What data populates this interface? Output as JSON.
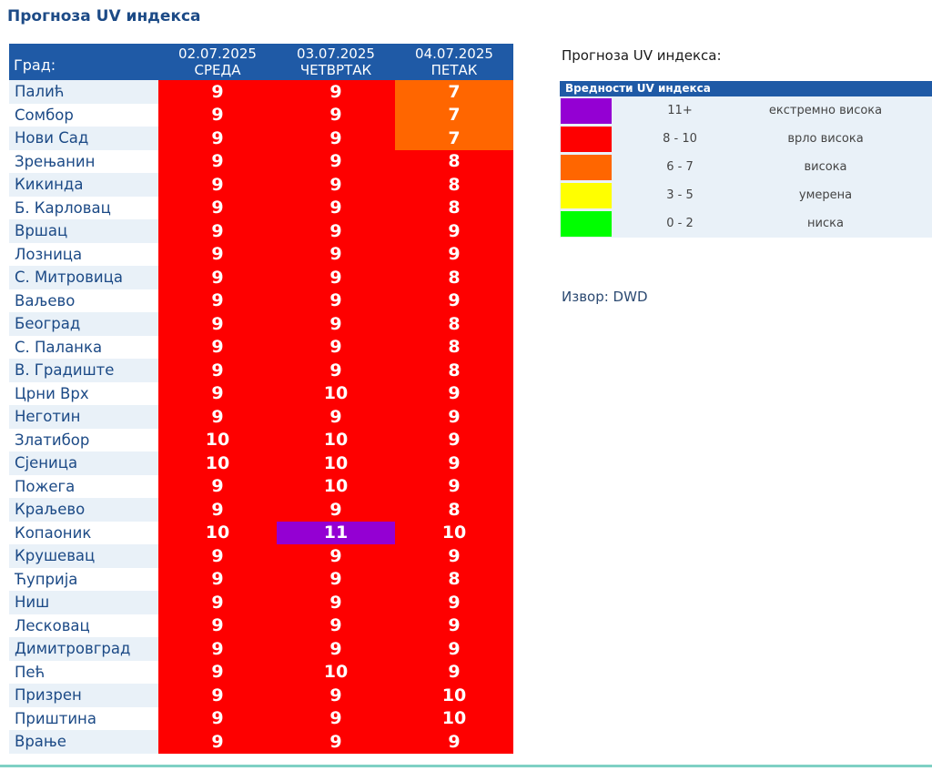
{
  "page": {
    "title": "Прогноза UV индекса"
  },
  "table": {
    "city_header": "Град:",
    "days": [
      {
        "date": "02.07.2025",
        "weekday": "СРЕДА"
      },
      {
        "date": "03.07.2025",
        "weekday": "ЧЕТВРТАК"
      },
      {
        "date": "04.07.2025",
        "weekday": "ПЕТАК"
      }
    ],
    "rows": [
      {
        "city": "Палић",
        "values": [
          9,
          9,
          7
        ]
      },
      {
        "city": "Сомбор",
        "values": [
          9,
          9,
          7
        ]
      },
      {
        "city": "Нови Сад",
        "values": [
          9,
          9,
          7
        ]
      },
      {
        "city": "Зрењанин",
        "values": [
          9,
          9,
          8
        ]
      },
      {
        "city": "Кикинда",
        "values": [
          9,
          9,
          8
        ]
      },
      {
        "city": "Б. Карловац",
        "values": [
          9,
          9,
          8
        ]
      },
      {
        "city": "Вршац",
        "values": [
          9,
          9,
          9
        ]
      },
      {
        "city": "Лозница",
        "values": [
          9,
          9,
          9
        ]
      },
      {
        "city": "С. Митровица",
        "values": [
          9,
          9,
          8
        ]
      },
      {
        "city": "Ваљево",
        "values": [
          9,
          9,
          9
        ]
      },
      {
        "city": "Београд",
        "values": [
          9,
          9,
          8
        ]
      },
      {
        "city": "С. Паланка",
        "values": [
          9,
          9,
          8
        ]
      },
      {
        "city": "В. Градиште",
        "values": [
          9,
          9,
          8
        ]
      },
      {
        "city": "Црни Врх",
        "values": [
          9,
          10,
          9
        ]
      },
      {
        "city": "Неготин",
        "values": [
          9,
          9,
          9
        ]
      },
      {
        "city": "Златибор",
        "values": [
          10,
          10,
          9
        ]
      },
      {
        "city": "Сјеница",
        "values": [
          10,
          10,
          9
        ]
      },
      {
        "city": "Пожега",
        "values": [
          9,
          10,
          9
        ]
      },
      {
        "city": "Краљево",
        "values": [
          9,
          9,
          8
        ]
      },
      {
        "city": "Копаоник",
        "values": [
          10,
          11,
          10
        ]
      },
      {
        "city": "Крушевац",
        "values": [
          9,
          9,
          9
        ]
      },
      {
        "city": "Ћуприја",
        "values": [
          9,
          9,
          8
        ]
      },
      {
        "city": "Ниш",
        "values": [
          9,
          9,
          9
        ]
      },
      {
        "city": "Лесковац",
        "values": [
          9,
          9,
          9
        ]
      },
      {
        "city": "Димитровград",
        "values": [
          9,
          9,
          9
        ]
      },
      {
        "city": "Пећ",
        "values": [
          9,
          10,
          9
        ]
      },
      {
        "city": "Призрен",
        "values": [
          9,
          9,
          10
        ]
      },
      {
        "city": "Приштина",
        "values": [
          9,
          9,
          10
        ]
      },
      {
        "city": "Врање",
        "values": [
          9,
          9,
          9
        ]
      }
    ]
  },
  "legend": {
    "heading": "Прогноза UV индекса:",
    "title": "Вредности UV индекса",
    "items": [
      {
        "range": "11+",
        "label": "екстремно висока",
        "color": "#9400d3"
      },
      {
        "range": "8 - 10",
        "label": "врло висока",
        "color": "#fe0000"
      },
      {
        "range": "6 - 7",
        "label": "висока",
        "color": "#ff6600"
      },
      {
        "range": "3 - 5",
        "label": "умерена",
        "color": "#ffff00"
      },
      {
        "range": "0 - 2",
        "label": "ниска",
        "color": "#00ff00"
      }
    ]
  },
  "source": "Извор: DWD"
}
